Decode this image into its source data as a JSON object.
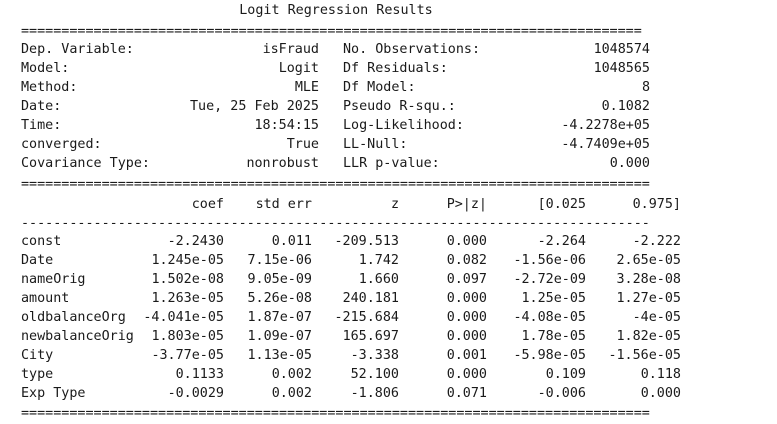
{
  "title": "Logit Regression Results",
  "rule_double_short": "=============================================================================",
  "rule_double_long": "==============================================================================",
  "rule_single_long": "------------------------------------------------------------------------------",
  "summary": [
    {
      "l_label": "Dep. Variable:",
      "l_value": "isFraud",
      "r_label": "No. Observations:",
      "r_value": "1048574"
    },
    {
      "l_label": "Model:",
      "l_value": "Logit",
      "r_label": "Df Residuals:",
      "r_value": "1048565"
    },
    {
      "l_label": "Method:",
      "l_value": "MLE",
      "r_label": "Df Model:",
      "r_value": "8"
    },
    {
      "l_label": "Date:",
      "l_value": "Tue, 25 Feb 2025",
      "r_label": "Pseudo R-squ.:",
      "r_value": "0.1082"
    },
    {
      "l_label": "Time:",
      "l_value": "18:54:15",
      "r_label": "Log-Likelihood:",
      "r_value": "-4.2278e+05"
    },
    {
      "l_label": "converged:",
      "l_value": "True",
      "r_label": "LL-Null:",
      "r_value": "-4.7409e+05"
    },
    {
      "l_label": "Covariance Type:",
      "l_value": "nonrobust",
      "r_label": "LLR p-value:",
      "r_value": "0.000"
    }
  ],
  "coef_headers": [
    "coef",
    "std err",
    "z",
    "P>|z|",
    "[0.025",
    "0.975]"
  ],
  "coef_rows": [
    {
      "name": "const",
      "v": [
        "-2.2430",
        "0.011",
        "-209.513",
        "0.000",
        "-2.264",
        "-2.222"
      ]
    },
    {
      "name": "Date",
      "v": [
        "1.245e-05",
        "7.15e-06",
        "1.742",
        "0.082",
        "-1.56e-06",
        "2.65e-05"
      ]
    },
    {
      "name": "nameOrig",
      "v": [
        "1.502e-08",
        "9.05e-09",
        "1.660",
        "0.097",
        "-2.72e-09",
        "3.28e-08"
      ]
    },
    {
      "name": "amount",
      "v": [
        "1.263e-05",
        "5.26e-08",
        "240.181",
        "0.000",
        "1.25e-05",
        "1.27e-05"
      ]
    },
    {
      "name": "oldbalanceOrg",
      "v": [
        "-4.041e-05",
        "1.87e-07",
        "-215.684",
        "0.000",
        "-4.08e-05",
        "-4e-05"
      ]
    },
    {
      "name": "newbalanceOrig",
      "v": [
        "1.803e-05",
        "1.09e-07",
        "165.697",
        "0.000",
        "1.78e-05",
        "1.82e-05"
      ]
    },
    {
      "name": "City",
      "v": [
        "-3.77e-05",
        "1.13e-05",
        "-3.338",
        "0.001",
        "-5.98e-05",
        "-1.56e-05"
      ]
    },
    {
      "name": "type",
      "v": [
        "0.1133",
        "0.002",
        "52.100",
        "0.000",
        "0.109",
        "0.118"
      ]
    },
    {
      "name": "Exp Type",
      "v": [
        "-0.0029",
        "0.002",
        "-1.806",
        "0.071",
        "-0.006",
        "0.000"
      ]
    }
  ]
}
